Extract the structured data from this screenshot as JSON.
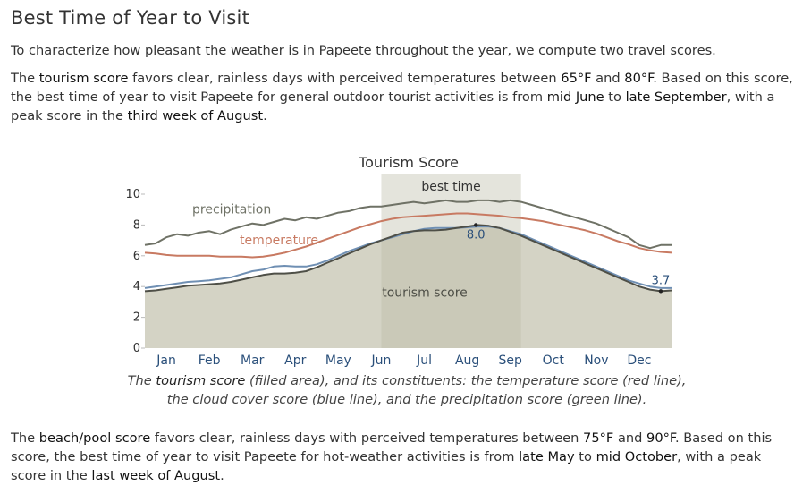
{
  "heading": "Best Time of Year to Visit",
  "intro": "To characterize how pleasant the weather is in Papeete throughout the year, we compute two travel scores.",
  "tourism_paragraph": {
    "t1": "The ",
    "score_name": "tourism score",
    "t2": " favors clear, rainless days with perceived temperatures between ",
    "temp_low": "65°F",
    "t3": " and ",
    "temp_high": "80°F",
    "t4": ". Based on this score, the best time of year to visit Papeete for general outdoor tourist activities is from ",
    "start": "mid June",
    "t5": " to ",
    "end": "late September",
    "t6": ", with a peak score in the ",
    "peak": "third week of August",
    "t7": "."
  },
  "caption": {
    "t1": "The ",
    "score_name": "tourism score",
    "t2": " (filled area), and its constituents: the temperature score (red line), the cloud cover score (blue line), and the precipitation score (green line)."
  },
  "beach_paragraph": {
    "t1": "The ",
    "score_name": "beach/pool score",
    "t2": " favors clear, rainless days with perceived temperatures between ",
    "temp_low": "75°F",
    "t3": " and ",
    "temp_high": "90°F",
    "t4": ". Based on this score, the best time of year to visit Papeete for hot-weather activities is from ",
    "start": "late May",
    "t5": " to ",
    "end": "mid October",
    "t6": ", with a peak score in the ",
    "peak": "last week of August",
    "t7": "."
  },
  "chart_data": {
    "type": "area",
    "title": "Tourism Score",
    "best_time_label": "best time",
    "best_time_range": [
      5.0,
      8.25
    ],
    "x_range": [
      -0.5,
      11.75
    ],
    "ylim": [
      0,
      10
    ],
    "y_ticks": [
      "0",
      "2",
      "4",
      "6",
      "8",
      "10"
    ],
    "month_labels": [
      "Jan",
      "Feb",
      "Mar",
      "Apr",
      "May",
      "Jun",
      "Jul",
      "Aug",
      "Sep",
      "Oct",
      "Nov",
      "Dec"
    ],
    "peak_label": "8.0",
    "peak_x": 7.2,
    "peak_value": 8.0,
    "min_label": "3.7",
    "min_x": 11.5,
    "min_value": 3.7,
    "series": [
      {
        "key": "precipitation",
        "label": "precipitation",
        "color": "#6f7266",
        "x": [
          -0.5,
          -0.25,
          0,
          0.25,
          0.5,
          0.75,
          1,
          1.25,
          1.5,
          1.75,
          2,
          2.25,
          2.5,
          2.75,
          3,
          3.25,
          3.5,
          3.75,
          4,
          4.25,
          4.5,
          4.75,
          5,
          5.25,
          5.5,
          5.75,
          6,
          6.25,
          6.5,
          6.75,
          7,
          7.25,
          7.5,
          7.75,
          8,
          8.25,
          8.5,
          8.75,
          9,
          9.25,
          9.5,
          9.75,
          10,
          10.25,
          10.5,
          10.75,
          11,
          11.25,
          11.5,
          11.75
        ],
        "y": [
          6.7,
          6.8,
          7.2,
          7.4,
          7.3,
          7.5,
          7.6,
          7.4,
          7.7,
          7.9,
          8.1,
          8.0,
          8.2,
          8.4,
          8.3,
          8.5,
          8.4,
          8.6,
          8.8,
          8.9,
          9.1,
          9.2,
          9.2,
          9.3,
          9.4,
          9.5,
          9.4,
          9.5,
          9.6,
          9.5,
          9.5,
          9.6,
          9.6,
          9.5,
          9.6,
          9.5,
          9.3,
          9.1,
          8.9,
          8.7,
          8.5,
          8.3,
          8.1,
          7.8,
          7.5,
          7.2,
          6.7,
          6.5,
          6.7,
          6.7
        ]
      },
      {
        "key": "temperature",
        "label": "temperature",
        "color": "#c87a62",
        "x": [
          -0.5,
          -0.25,
          0,
          0.25,
          0.5,
          0.75,
          1,
          1.25,
          1.5,
          1.75,
          2,
          2.25,
          2.5,
          2.75,
          3,
          3.25,
          3.5,
          3.75,
          4,
          4.25,
          4.5,
          4.75,
          5,
          5.25,
          5.5,
          5.75,
          6,
          6.25,
          6.5,
          6.75,
          7,
          7.25,
          7.5,
          7.75,
          8,
          8.25,
          8.5,
          8.75,
          9,
          9.25,
          9.5,
          9.75,
          10,
          10.25,
          10.5,
          10.75,
          11,
          11.25,
          11.5,
          11.75
        ],
        "y": [
          6.2,
          6.15,
          6.05,
          6.0,
          6.0,
          6.0,
          6.0,
          5.95,
          5.95,
          5.95,
          5.9,
          5.95,
          6.05,
          6.2,
          6.4,
          6.6,
          6.85,
          7.1,
          7.35,
          7.6,
          7.85,
          8.05,
          8.25,
          8.4,
          8.5,
          8.55,
          8.6,
          8.65,
          8.7,
          8.75,
          8.75,
          8.7,
          8.65,
          8.6,
          8.5,
          8.45,
          8.35,
          8.25,
          8.1,
          7.95,
          7.8,
          7.65,
          7.45,
          7.2,
          6.95,
          6.75,
          6.5,
          6.35,
          6.25,
          6.2
        ]
      },
      {
        "key": "cloud_cover",
        "label": "",
        "color": "#6f8fb3",
        "x": [
          -0.5,
          -0.25,
          0,
          0.25,
          0.5,
          0.75,
          1,
          1.25,
          1.5,
          1.75,
          2,
          2.25,
          2.5,
          2.75,
          3,
          3.25,
          3.5,
          3.75,
          4,
          4.25,
          4.5,
          4.75,
          5,
          5.25,
          5.5,
          5.75,
          6,
          6.25,
          6.5,
          6.75,
          7,
          7.25,
          7.5,
          7.75,
          8,
          8.25,
          8.5,
          8.75,
          9,
          9.25,
          9.5,
          9.75,
          10,
          10.25,
          10.5,
          10.75,
          11,
          11.25,
          11.5,
          11.75
        ],
        "y": [
          3.9,
          4.0,
          4.1,
          4.2,
          4.3,
          4.35,
          4.4,
          4.5,
          4.6,
          4.8,
          5.0,
          5.1,
          5.3,
          5.35,
          5.3,
          5.3,
          5.45,
          5.7,
          6.0,
          6.3,
          6.55,
          6.8,
          7.0,
          7.2,
          7.4,
          7.6,
          7.75,
          7.8,
          7.8,
          7.8,
          7.85,
          7.9,
          7.9,
          7.8,
          7.6,
          7.4,
          7.1,
          6.8,
          6.5,
          6.2,
          5.9,
          5.6,
          5.3,
          5.0,
          4.7,
          4.4,
          4.2,
          4.0,
          3.9,
          3.9
        ]
      },
      {
        "key": "tourism",
        "label": "tourism score",
        "color": "#4e4f47",
        "x": [
          -0.5,
          -0.25,
          0,
          0.25,
          0.5,
          0.75,
          1,
          1.25,
          1.5,
          1.75,
          2,
          2.25,
          2.5,
          2.75,
          3,
          3.25,
          3.5,
          3.75,
          4,
          4.25,
          4.5,
          4.75,
          5,
          5.25,
          5.5,
          5.75,
          6,
          6.25,
          6.5,
          6.75,
          7,
          7.25,
          7.5,
          7.75,
          8,
          8.25,
          8.5,
          8.75,
          9,
          9.25,
          9.5,
          9.75,
          10,
          10.25,
          10.5,
          10.75,
          11,
          11.25,
          11.5,
          11.75
        ],
        "y": [
          3.7,
          3.75,
          3.85,
          3.95,
          4.05,
          4.1,
          4.15,
          4.2,
          4.3,
          4.45,
          4.6,
          4.75,
          4.85,
          4.85,
          4.9,
          5.0,
          5.25,
          5.55,
          5.85,
          6.15,
          6.45,
          6.75,
          7.0,
          7.25,
          7.5,
          7.6,
          7.65,
          7.65,
          7.7,
          7.8,
          7.9,
          8.0,
          7.95,
          7.8,
          7.55,
          7.3,
          7.0,
          6.7,
          6.4,
          6.1,
          5.8,
          5.5,
          5.2,
          4.9,
          4.6,
          4.3,
          4.0,
          3.8,
          3.7,
          3.75
        ]
      }
    ]
  }
}
